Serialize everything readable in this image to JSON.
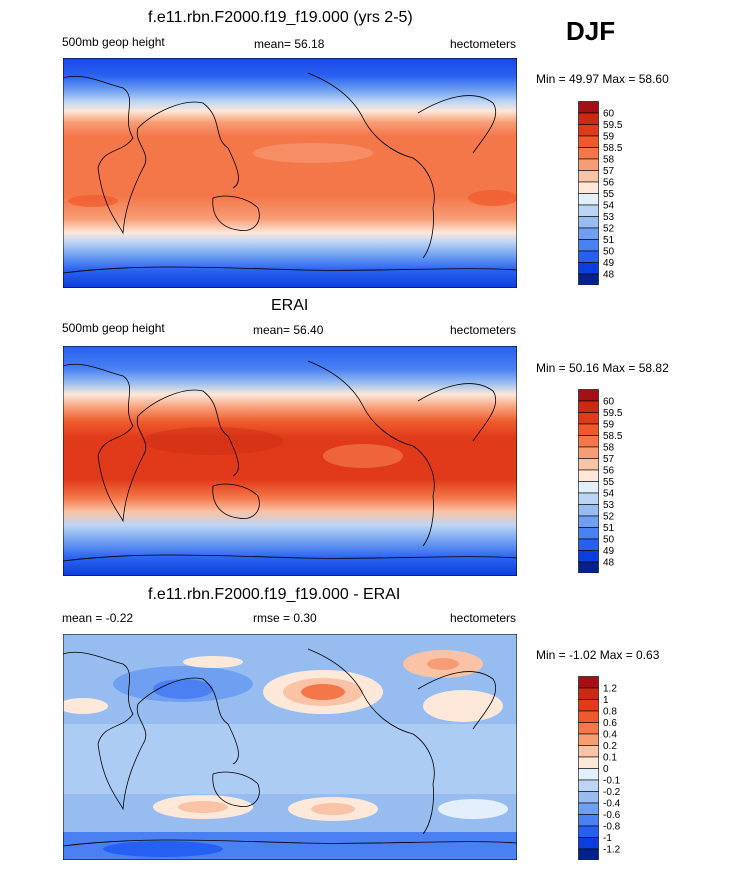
{
  "season": "DJF",
  "panels": [
    {
      "title": "f.e11.rbn.F2000.f19_f19.000 (yrs 2-5)",
      "left_label": "500mb geop height",
      "center_label": "mean=  56.18",
      "right_label": "hectometers",
      "minmax": "Min =  49.97 Max =  58.60",
      "colorbar": {
        "labels": [
          "60",
          "59.5",
          "59",
          "58.5",
          "58",
          "57",
          "56",
          "55",
          "54",
          "53",
          "52",
          "51",
          "50",
          "49",
          "48"
        ],
        "colors": [
          "#a50f15",
          "#cb2a12",
          "#e03a1a",
          "#ef5a2c",
          "#f4774a",
          "#f79d76",
          "#fbc3a6",
          "#fde8da",
          "#e3effb",
          "#bdd5f5",
          "#97bdf0",
          "#6e9ff0",
          "#4a80f2",
          "#2660f0",
          "#0a3ee0",
          "#00228a"
        ]
      }
    },
    {
      "title": "ERAI",
      "left_label": "500mb geop height",
      "center_label": "mean=  56.40",
      "right_label": "hectometers",
      "minmax": "Min =  50.16 Max =  58.82",
      "colorbar": {
        "labels": [
          "60",
          "59.5",
          "59",
          "58.5",
          "58",
          "57",
          "56",
          "55",
          "54",
          "53",
          "52",
          "51",
          "50",
          "49",
          "48"
        ],
        "colors": [
          "#a50f15",
          "#cb2a12",
          "#e03a1a",
          "#ef5a2c",
          "#f4774a",
          "#f79d76",
          "#fbc3a6",
          "#fde8da",
          "#e3effb",
          "#bdd5f5",
          "#97bdf0",
          "#6e9ff0",
          "#4a80f2",
          "#2660f0",
          "#0a3ee0",
          "#00228a"
        ]
      }
    },
    {
      "title": "f.e11.rbn.F2000.f19_f19.000 - ERAI",
      "left_label": "mean =  -0.22",
      "center_label": "rmse =   0.30",
      "right_label": "hectometers",
      "minmax": "Min =  -1.02 Max =   0.63",
      "colorbar": {
        "labels": [
          "1.2",
          "1",
          "0.8",
          "0.6",
          "0.4",
          "0.2",
          "0.1",
          "0",
          "-0.1",
          "-0.2",
          "-0.4",
          "-0.6",
          "-0.8",
          "-1",
          "-1.2"
        ],
        "colors": [
          "#a50f15",
          "#cb2a12",
          "#e03a1a",
          "#ef5a2c",
          "#f4774a",
          "#f79d76",
          "#fbc3a6",
          "#fde8da",
          "#e3effb",
          "#bdd5f5",
          "#97bdf0",
          "#6e9ff0",
          "#4a80f2",
          "#2660f0",
          "#0a3ee0",
          "#00228a"
        ]
      }
    }
  ]
}
